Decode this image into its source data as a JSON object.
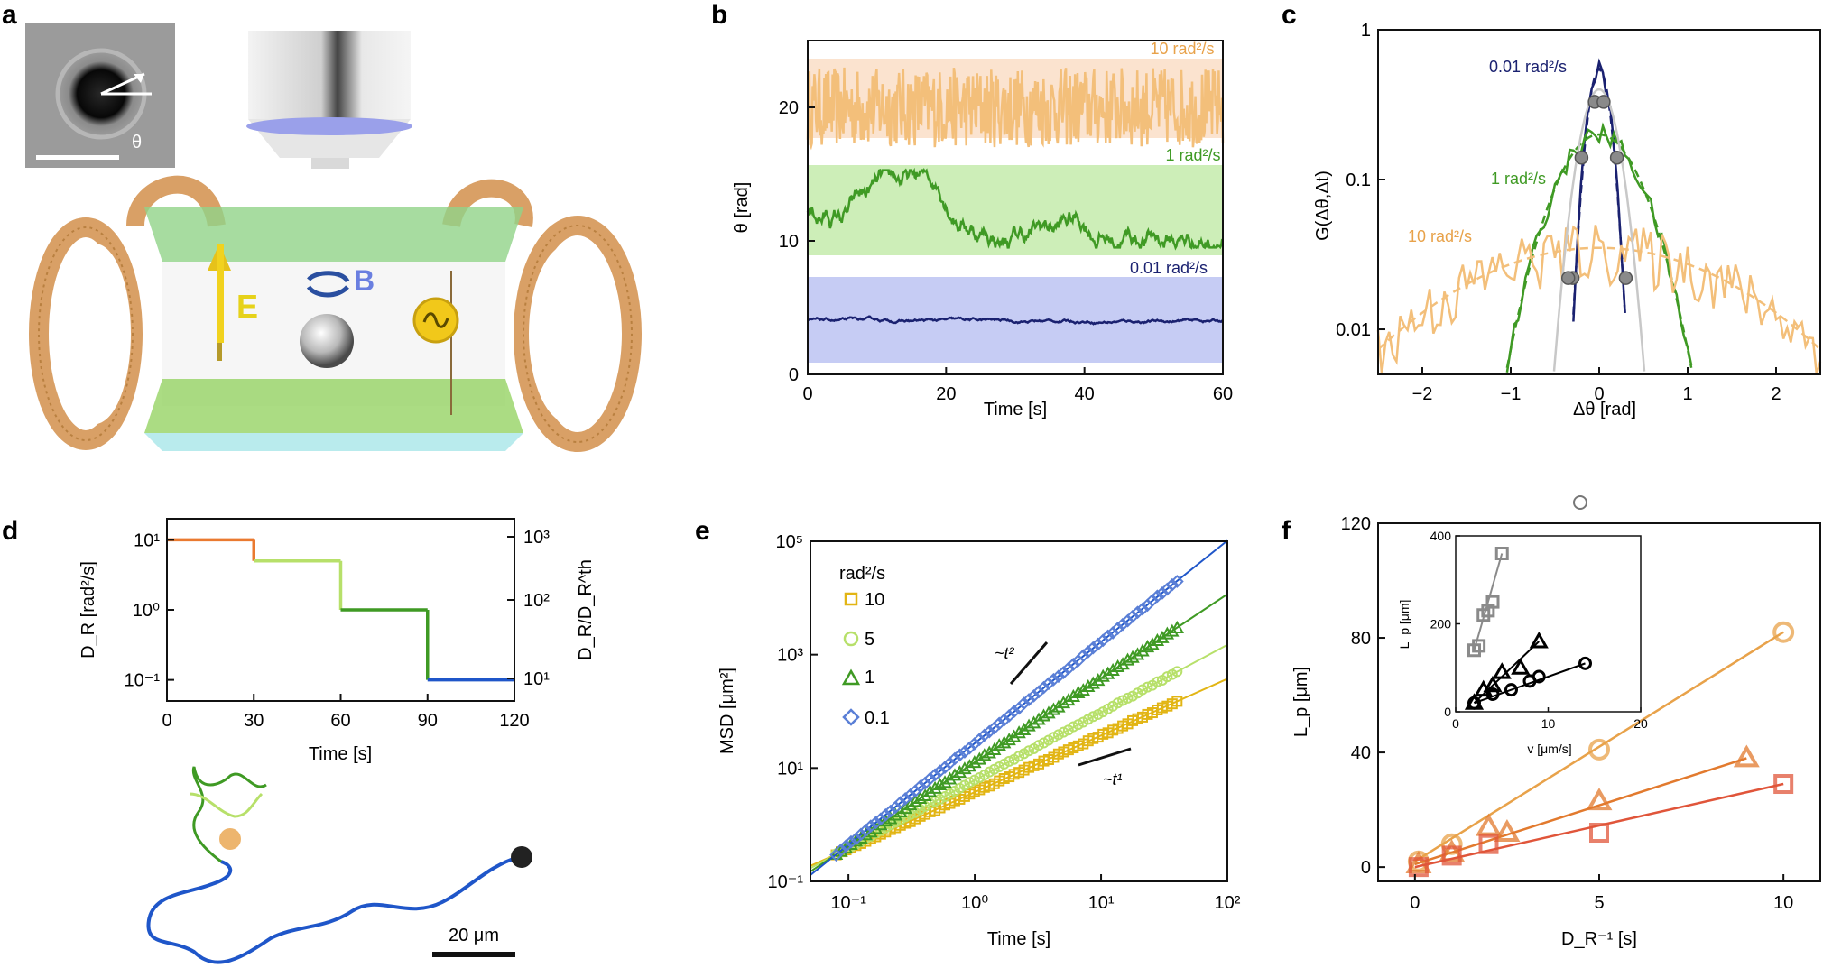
{
  "panel_letters": [
    "a",
    "b",
    "c",
    "d",
    "e",
    "f"
  ],
  "panel_a": {
    "theta_label": "θ",
    "field_E": "E",
    "field_B": "B"
  },
  "colors": {
    "orange": "#e8a24a",
    "light_orange": "#f3bf7a",
    "green": "#3f9a24",
    "light_green": "#b7e06a",
    "navy": "#1a2170",
    "blue": "#1f56c9",
    "yellow": "#e2b514",
    "grey": "#9a9a9a",
    "red_orange": "#e0553a",
    "mid_orange": "#ea7a30",
    "band_orange": "#fbe3cf",
    "band_green": "#cdeeb8",
    "band_blue": "#c6ccf4"
  },
  "chart_data": [
    {
      "id": "b",
      "type": "line",
      "xlabel": "Time [s]",
      "ylabel": "θ [rad]",
      "xlim": [
        0,
        60
      ],
      "ylim": [
        0,
        25
      ],
      "xticks": [
        "0",
        "20",
        "40",
        "60"
      ],
      "yticks": [
        "0",
        "10",
        "20"
      ],
      "series": [
        {
          "name": "10 rad²/s",
          "mean": 20,
          "band": [
            17,
            23
          ]
        },
        {
          "name": "1 rad²/s",
          "mean": 12,
          "band": [
            9,
            15
          ]
        },
        {
          "name": "0.01 rad²/s",
          "mean": 4,
          "band": [
            1,
            7
          ]
        }
      ]
    },
    {
      "id": "c",
      "type": "line",
      "xlabel": "Δθ [rad]",
      "ylabel": "G(Δθ,Δt)",
      "yscale": "log",
      "xlim": [
        -2.5,
        2.5
      ],
      "ylim": [
        0.005,
        1
      ],
      "xticks": [
        "−2",
        "−1",
        "0",
        "1",
        "2",
        "−1"
      ],
      "yticks": [
        "0.01",
        "0.1",
        "1"
      ],
      "series": [
        {
          "name": "0.01 rad²/s",
          "peak": 0.55,
          "width": 0.15
        },
        {
          "name": "1 rad²/s",
          "peak": 0.2,
          "width": 0.55
        },
        {
          "name": "10 rad²/s",
          "peak": 0.035,
          "width": 2.0
        }
      ],
      "grey_points": [
        [
          -0.3,
          0.022
        ],
        [
          -0.2,
          0.14
        ],
        [
          -0.05,
          0.33
        ],
        [
          0.05,
          0.33
        ],
        [
          0.2,
          0.14
        ],
        [
          0.3,
          0.022
        ],
        [
          -0.35,
          0.022
        ]
      ]
    },
    {
      "id": "d",
      "type": "line",
      "xlabel": "Time [s]",
      "ylabel": "D_R [rad²/s]",
      "ylabel_right": "D_R/D_R^th",
      "yscale": "log",
      "xlim": [
        0,
        120
      ],
      "ylim": [
        0.05,
        20
      ],
      "xticks": [
        "0",
        "30",
        "60",
        "90",
        "120"
      ],
      "yticks": [
        "10⁻¹",
        "10⁰",
        "10¹"
      ],
      "yticks_right": [
        "10¹",
        "10²",
        "10³"
      ],
      "steps": [
        {
          "t0": 0,
          "t1": 30,
          "value": 10
        },
        {
          "t0": 30,
          "t1": 60,
          "value": 5
        },
        {
          "t0": 60,
          "t1": 90,
          "value": 1
        },
        {
          "t0": 90,
          "t1": 120,
          "value": 0.1
        }
      ],
      "scale_bar": "20 μm"
    },
    {
      "id": "e",
      "type": "scatter",
      "xlabel": "Time [s]",
      "ylabel": "MSD [μm²]",
      "xscale": "log",
      "yscale": "log",
      "xlim": [
        0.05,
        100
      ],
      "ylim": [
        0.1,
        100000
      ],
      "xticks": [
        "10⁻¹",
        "10⁰",
        "10¹",
        "10²"
      ],
      "yticks": [
        "10⁻¹",
        "10¹",
        "10³",
        "10⁵"
      ],
      "legend_title": "rad²/s",
      "series": [
        {
          "name": "10",
          "final": 150
        },
        {
          "name": "5",
          "final": 500
        },
        {
          "name": "1",
          "final": 3000
        },
        {
          "name": "0.1",
          "final": 20000
        }
      ],
      "annotations": [
        "~t²",
        "~t¹"
      ]
    },
    {
      "id": "f",
      "type": "scatter",
      "xlabel": "D_R⁻¹ [s]",
      "ylabel": "L_p [μm]",
      "xlim": [
        -1,
        11
      ],
      "ylim": [
        -5,
        120
      ],
      "xticks": [
        "0",
        "5",
        "10"
      ],
      "yticks": [
        "0",
        "40",
        "80",
        "120"
      ],
      "series": [
        {
          "name": "circle",
          "x": [
            0.1,
            1,
            5,
            10
          ],
          "y": [
            2,
            8,
            41,
            82
          ]
        },
        {
          "name": "triangle",
          "x": [
            0.1,
            1,
            2,
            2.5,
            5,
            9
          ],
          "y": [
            1,
            5,
            14,
            12,
            23,
            38
          ]
        },
        {
          "name": "square",
          "x": [
            0.1,
            1,
            2,
            5,
            10
          ],
          "y": [
            0,
            4,
            8,
            12,
            29
          ]
        }
      ],
      "inset": {
        "xlabel": "v [μm/s]",
        "ylabel": "L_p [μm]",
        "xlim": [
          0,
          20
        ],
        "ylim": [
          0,
          400
        ],
        "xticks": [
          "0",
          "10",
          "20"
        ],
        "yticks": [
          "0",
          "200",
          "400"
        ],
        "series": [
          {
            "name": "grey squares",
            "x": [
              2,
              2.5,
              3,
              3.5,
              4,
              5
            ],
            "y": [
              140,
              150,
              220,
              230,
              250,
              360
            ]
          },
          {
            "name": "triangles",
            "x": [
              2,
              3,
              4,
              5,
              7,
              9
            ],
            "y": [
              20,
              50,
              60,
              90,
              100,
              160
            ]
          },
          {
            "name": "circles",
            "x": [
              2,
              4,
              6,
              8,
              9,
              14
            ],
            "y": [
              20,
              40,
              50,
              70,
              80,
              110
            ]
          }
        ]
      }
    }
  ]
}
